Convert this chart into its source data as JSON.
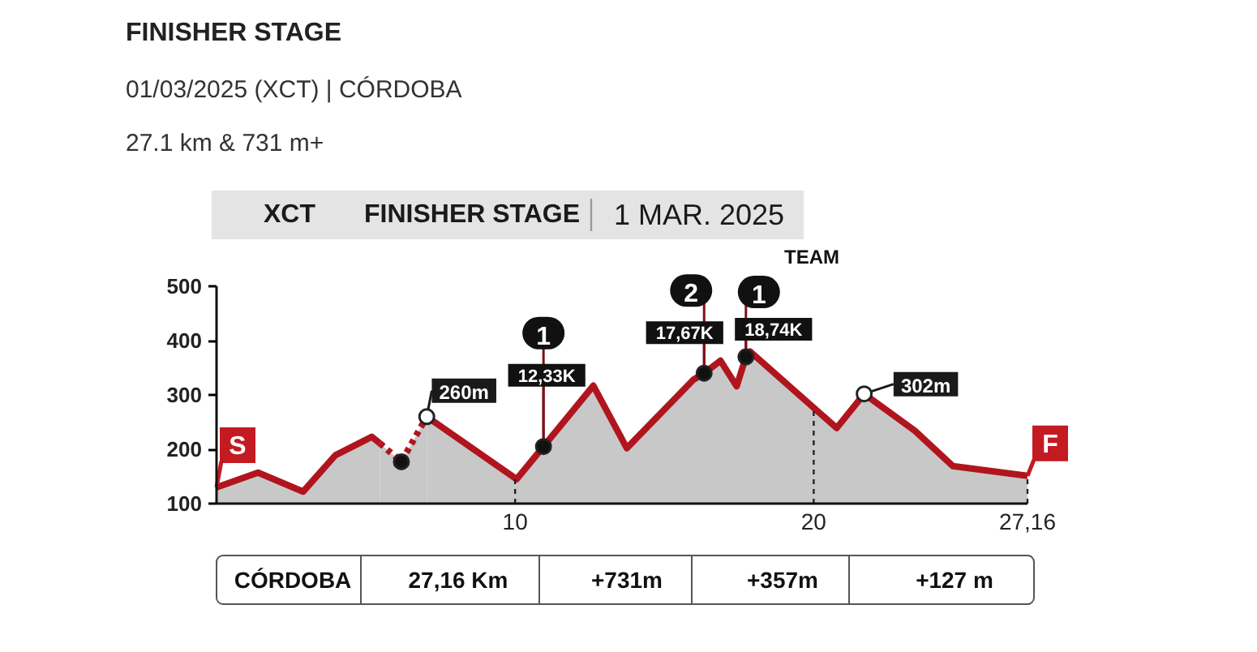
{
  "chart_data": {
    "type": "area",
    "title": "FINISHER STAGE",
    "subtitle": "01/03/2025 (XCT) | CÓRDOBA",
    "annotations": [
      "27.1 km & 731 m+",
      "XCT",
      "FINISHER STAGE",
      "1 MAR. 2025",
      "CÓRDOBA",
      "27,16 Km",
      "+731m",
      "+357m",
      "+127 m",
      "TEAM",
      {
        "text": "S",
        "x": 0,
        "y": 130
      },
      {
        "text": "F",
        "x": 27.16,
        "y": 151
      },
      {
        "text": "260m",
        "x": 7.04,
        "y": 260
      },
      {
        "text": "302m",
        "x": 21.69,
        "y": 302
      },
      {
        "text": "1",
        "x": 10.95,
        "y": 205
      },
      {
        "text": "12,33K",
        "x": 10.95,
        "y": 205
      },
      {
        "text": "2",
        "x": 16.33,
        "y": 340
      },
      {
        "text": "17,67K",
        "x": 16.33,
        "y": 340
      },
      {
        "text": "1",
        "x": 17.73,
        "y": 370
      },
      {
        "text": "18,74K",
        "x": 17.73,
        "y": 370
      }
    ],
    "xlim": [
      0,
      27.16
    ],
    "ylim": [
      100,
      500
    ],
    "xticks": [
      10,
      20,
      {
        "value": 27.16,
        "label": "27,16"
      }
    ],
    "yticks": [
      100,
      200,
      300,
      400,
      500
    ],
    "ref_lines": [
      {
        "axis": "x",
        "value": 10,
        "line_style": "dotted",
        "color": "#222222"
      },
      {
        "axis": "x",
        "value": 20,
        "line_style": "dotted",
        "color": "#222222"
      },
      {
        "axis": "x",
        "value": 27.16,
        "line_style": "dotted",
        "color": "#222222"
      }
    ],
    "series": [
      {
        "color": "#b0151e",
        "line_style": "solid",
        "x": [
          0,
          1.39,
          2.9,
          3.98,
          5.2,
          5.47
        ],
        "values": [
          130,
          157,
          122,
          189,
          223,
          211
        ]
      },
      {
        "color": "#b0151e",
        "line_style": "dotted",
        "x": [
          5.47,
          6.19,
          7.04
        ],
        "values": [
          211,
          177,
          260
        ]
      },
      {
        "color": "#b0151e",
        "line_style": "solid",
        "x": [
          7.04,
          10.05,
          10.95,
          12.62,
          13.74,
          15.97,
          16.33,
          16.88,
          17.42,
          17.73,
          17.87,
          20.77,
          21.69,
          23.39,
          24.66,
          27.16
        ],
        "values": [
          260,
          145,
          205,
          317,
          202,
          328,
          340,
          363,
          316,
          370,
          380,
          239,
          302,
          234,
          169,
          151
        ]
      },
      {
        "type": "scatter",
        "marker": "circle",
        "x": [
          6.19,
          7.04,
          10.95,
          16.33,
          17.73,
          21.69
        ],
        "values": [
          177,
          260,
          205,
          340,
          370,
          302
        ],
        "colors": [
          "#111111",
          "#ffffff",
          "#111111",
          "#111111",
          "#111111",
          "#ffffff"
        ]
      }
    ]
  }
}
